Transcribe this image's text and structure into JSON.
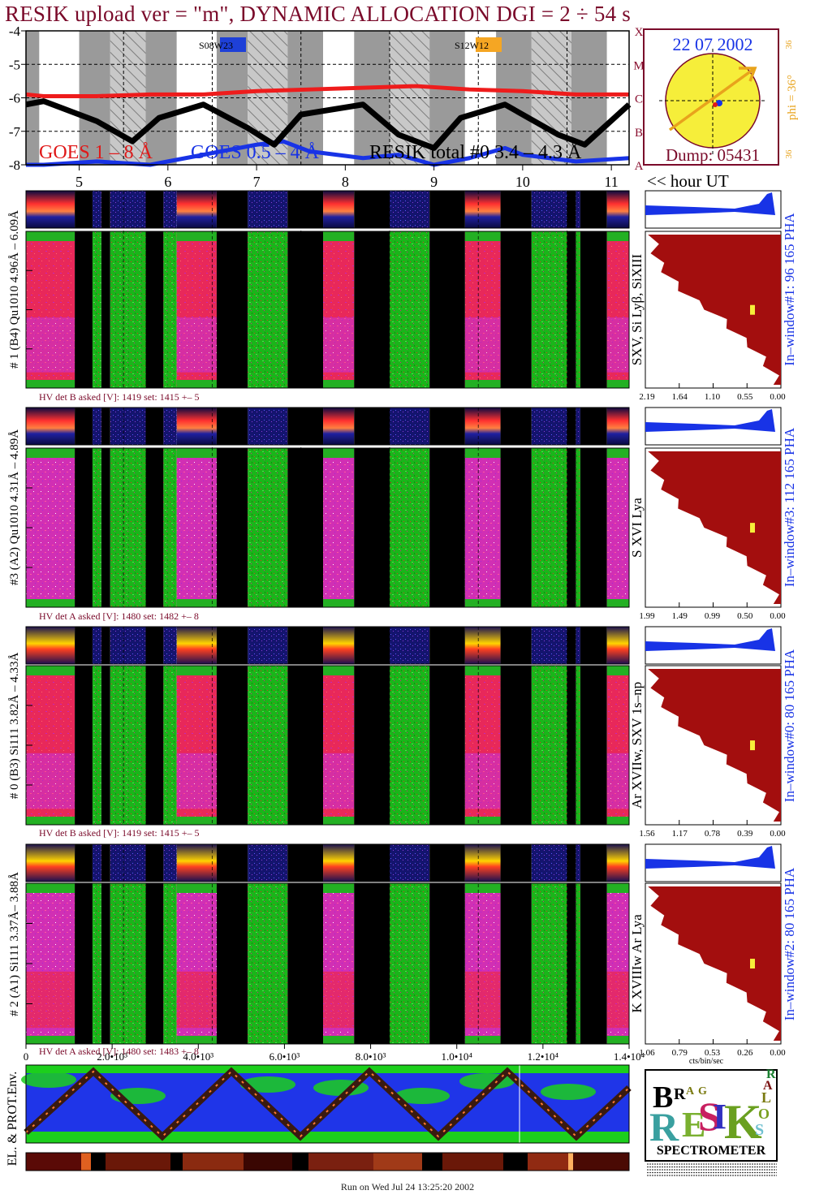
{
  "header": {
    "title": "RESIK upload ver = \"m\", DYNAMIC ALLOCATION  DGI =   2 ÷  54 s"
  },
  "goes_panel": {
    "y_ticks": [
      "-4",
      "-5",
      "-6",
      "-7",
      "-8"
    ],
    "flare_classes": [
      "X",
      "M",
      "C",
      "B",
      "A"
    ],
    "legend": {
      "goes_long": "GOES 1 – 8 Å",
      "goes_short": "GOES 0.5 – 4 Å",
      "resik_total": "RESIK total #0  3.4 – 4.3 Å"
    },
    "ar_labels": [
      {
        "text": "S08W23",
        "color": "#1e40d8"
      },
      {
        "text": "S12W12",
        "color": "#f5a623"
      }
    ]
  },
  "hour_axis": {
    "ticks": [
      "5",
      "6",
      "7",
      "8",
      "9",
      "10",
      "11"
    ],
    "label": "<< hour UT"
  },
  "sun_panel": {
    "date": "22 07 2002",
    "dump": "Dump: 05431",
    "phi": "phi = 36°",
    "side_top": "36",
    "side_bottom": "36",
    "disk_color": "#f6ee3a",
    "arrow_color": "#e8a31c"
  },
  "channels": [
    {
      "id": "ch1",
      "left_label": "# 1 (B4) Qu1010 4.96Å – 6.09Å",
      "hv_text": "HV det B asked [V]:  1419 set:  1415 +–    5",
      "line_label": "SXV, Si Lyβ, SiXIII",
      "window_label": "In–window#1:   96 165  PHA",
      "axis_ticks": [
        "2.19",
        "1.64",
        "1.10",
        "0.55",
        "0.00"
      ]
    },
    {
      "id": "ch3",
      "left_label": "#3 (A2) Qu1010  4.31Å – 4.89Å",
      "hv_text": "HV det A asked [V]:  1480 set:  1482 +–    8",
      "line_label": "S XVI Lya",
      "window_label": "In–window#3:  112 165  PHA",
      "axis_ticks": [
        "1.99",
        "1.49",
        "0.99",
        "0.50",
        "0.00"
      ]
    },
    {
      "id": "ch0",
      "left_label": "# 0 (B3) Si111  3.82Å – 4.33Å",
      "hv_text": "HV det B asked [V]:  1419 set:  1415 +–    5",
      "line_label": "Ar XVIIw,  SXV 1s–np",
      "window_label": "In–window#0:   80 165  PHA",
      "axis_ticks": [
        "1.56",
        "1.17",
        "0.78",
        "0.39",
        "0.00"
      ]
    },
    {
      "id": "ch2",
      "left_label": "# 2 (A1) Si111  3.37Å– 3.88Å",
      "hv_text": "HV det A asked [V]:  1480 set:  1483 +–    8",
      "line_label": "K XVIIIw  Ar Lya",
      "window_label": "In–window#2:   80 165  PHA",
      "axis_ticks": [
        "1.06",
        "0.79",
        "0.53",
        "0.26",
        "0.00"
      ],
      "unit": "cts/bin/sec"
    }
  ],
  "seconds_axis": {
    "ticks": [
      "0",
      "2.0•10³",
      "4.0•10³",
      "6.0•10³",
      "8.0•10³",
      "1.0•10⁴",
      "1.2•10⁴",
      "1.4•10⁴"
    ]
  },
  "env_panel": {
    "label": "EL. & PROT.Env."
  },
  "logo": {
    "letters": [
      "B",
      "R",
      "A",
      "G",
      "R",
      "E",
      "S",
      "I",
      "K",
      "S",
      "O",
      "L",
      "A",
      "R"
    ],
    "caption": "SPECTROMETER"
  },
  "footer": {
    "run_text": "Run on Wed Jul 24 13:25:20 2002"
  },
  "chart_data": {
    "type": "line",
    "x_unit": "hour UT",
    "y_log_flux_range": [
      -8,
      -4
    ],
    "series": [
      {
        "name": "GOES 1 – 8 Å",
        "color": "#ee1c1c",
        "x": [
          4.0,
          4.6,
          5.2,
          5.8,
          6.4,
          7.0,
          7.6,
          8.2,
          8.8,
          9.4,
          10.0,
          10.6,
          11.2
        ],
        "y": [
          -5.9,
          -5.95,
          -5.95,
          -5.9,
          -5.9,
          -5.8,
          -5.75,
          -5.7,
          -5.65,
          -5.75,
          -5.8,
          -5.9,
          -5.9
        ]
      },
      {
        "name": "GOES 0.5 – 4 Å",
        "color": "#1833e6",
        "x": [
          4.0,
          4.6,
          5.2,
          5.8,
          6.4,
          7.0,
          7.3,
          7.6,
          8.2,
          8.6,
          9.0,
          9.4,
          9.8,
          10.0,
          10.6,
          11.2
        ],
        "y": [
          -8.0,
          -8.0,
          -7.9,
          -8.0,
          -7.7,
          -7.4,
          -7.3,
          -7.6,
          -7.8,
          -7.7,
          -8.0,
          -7.8,
          -7.5,
          -7.7,
          -7.9,
          -7.8
        ]
      },
      {
        "name": "RESIK total #0  3.4 – 4.3 Å",
        "color": "#000000",
        "x": [
          4.0,
          4.6,
          5.2,
          5.6,
          5.9,
          6.4,
          6.9,
          7.2,
          7.5,
          8.2,
          8.6,
          9.0,
          9.3,
          9.8,
          10.4,
          10.7,
          11.2
        ],
        "y": [
          -6.2,
          -6.1,
          -6.7,
          -7.3,
          -6.6,
          -6.2,
          -6.9,
          -7.4,
          -6.5,
          -6.2,
          -7.1,
          -7.5,
          -6.6,
          -6.2,
          -7.1,
          -7.4,
          -6.2
        ]
      }
    ]
  }
}
